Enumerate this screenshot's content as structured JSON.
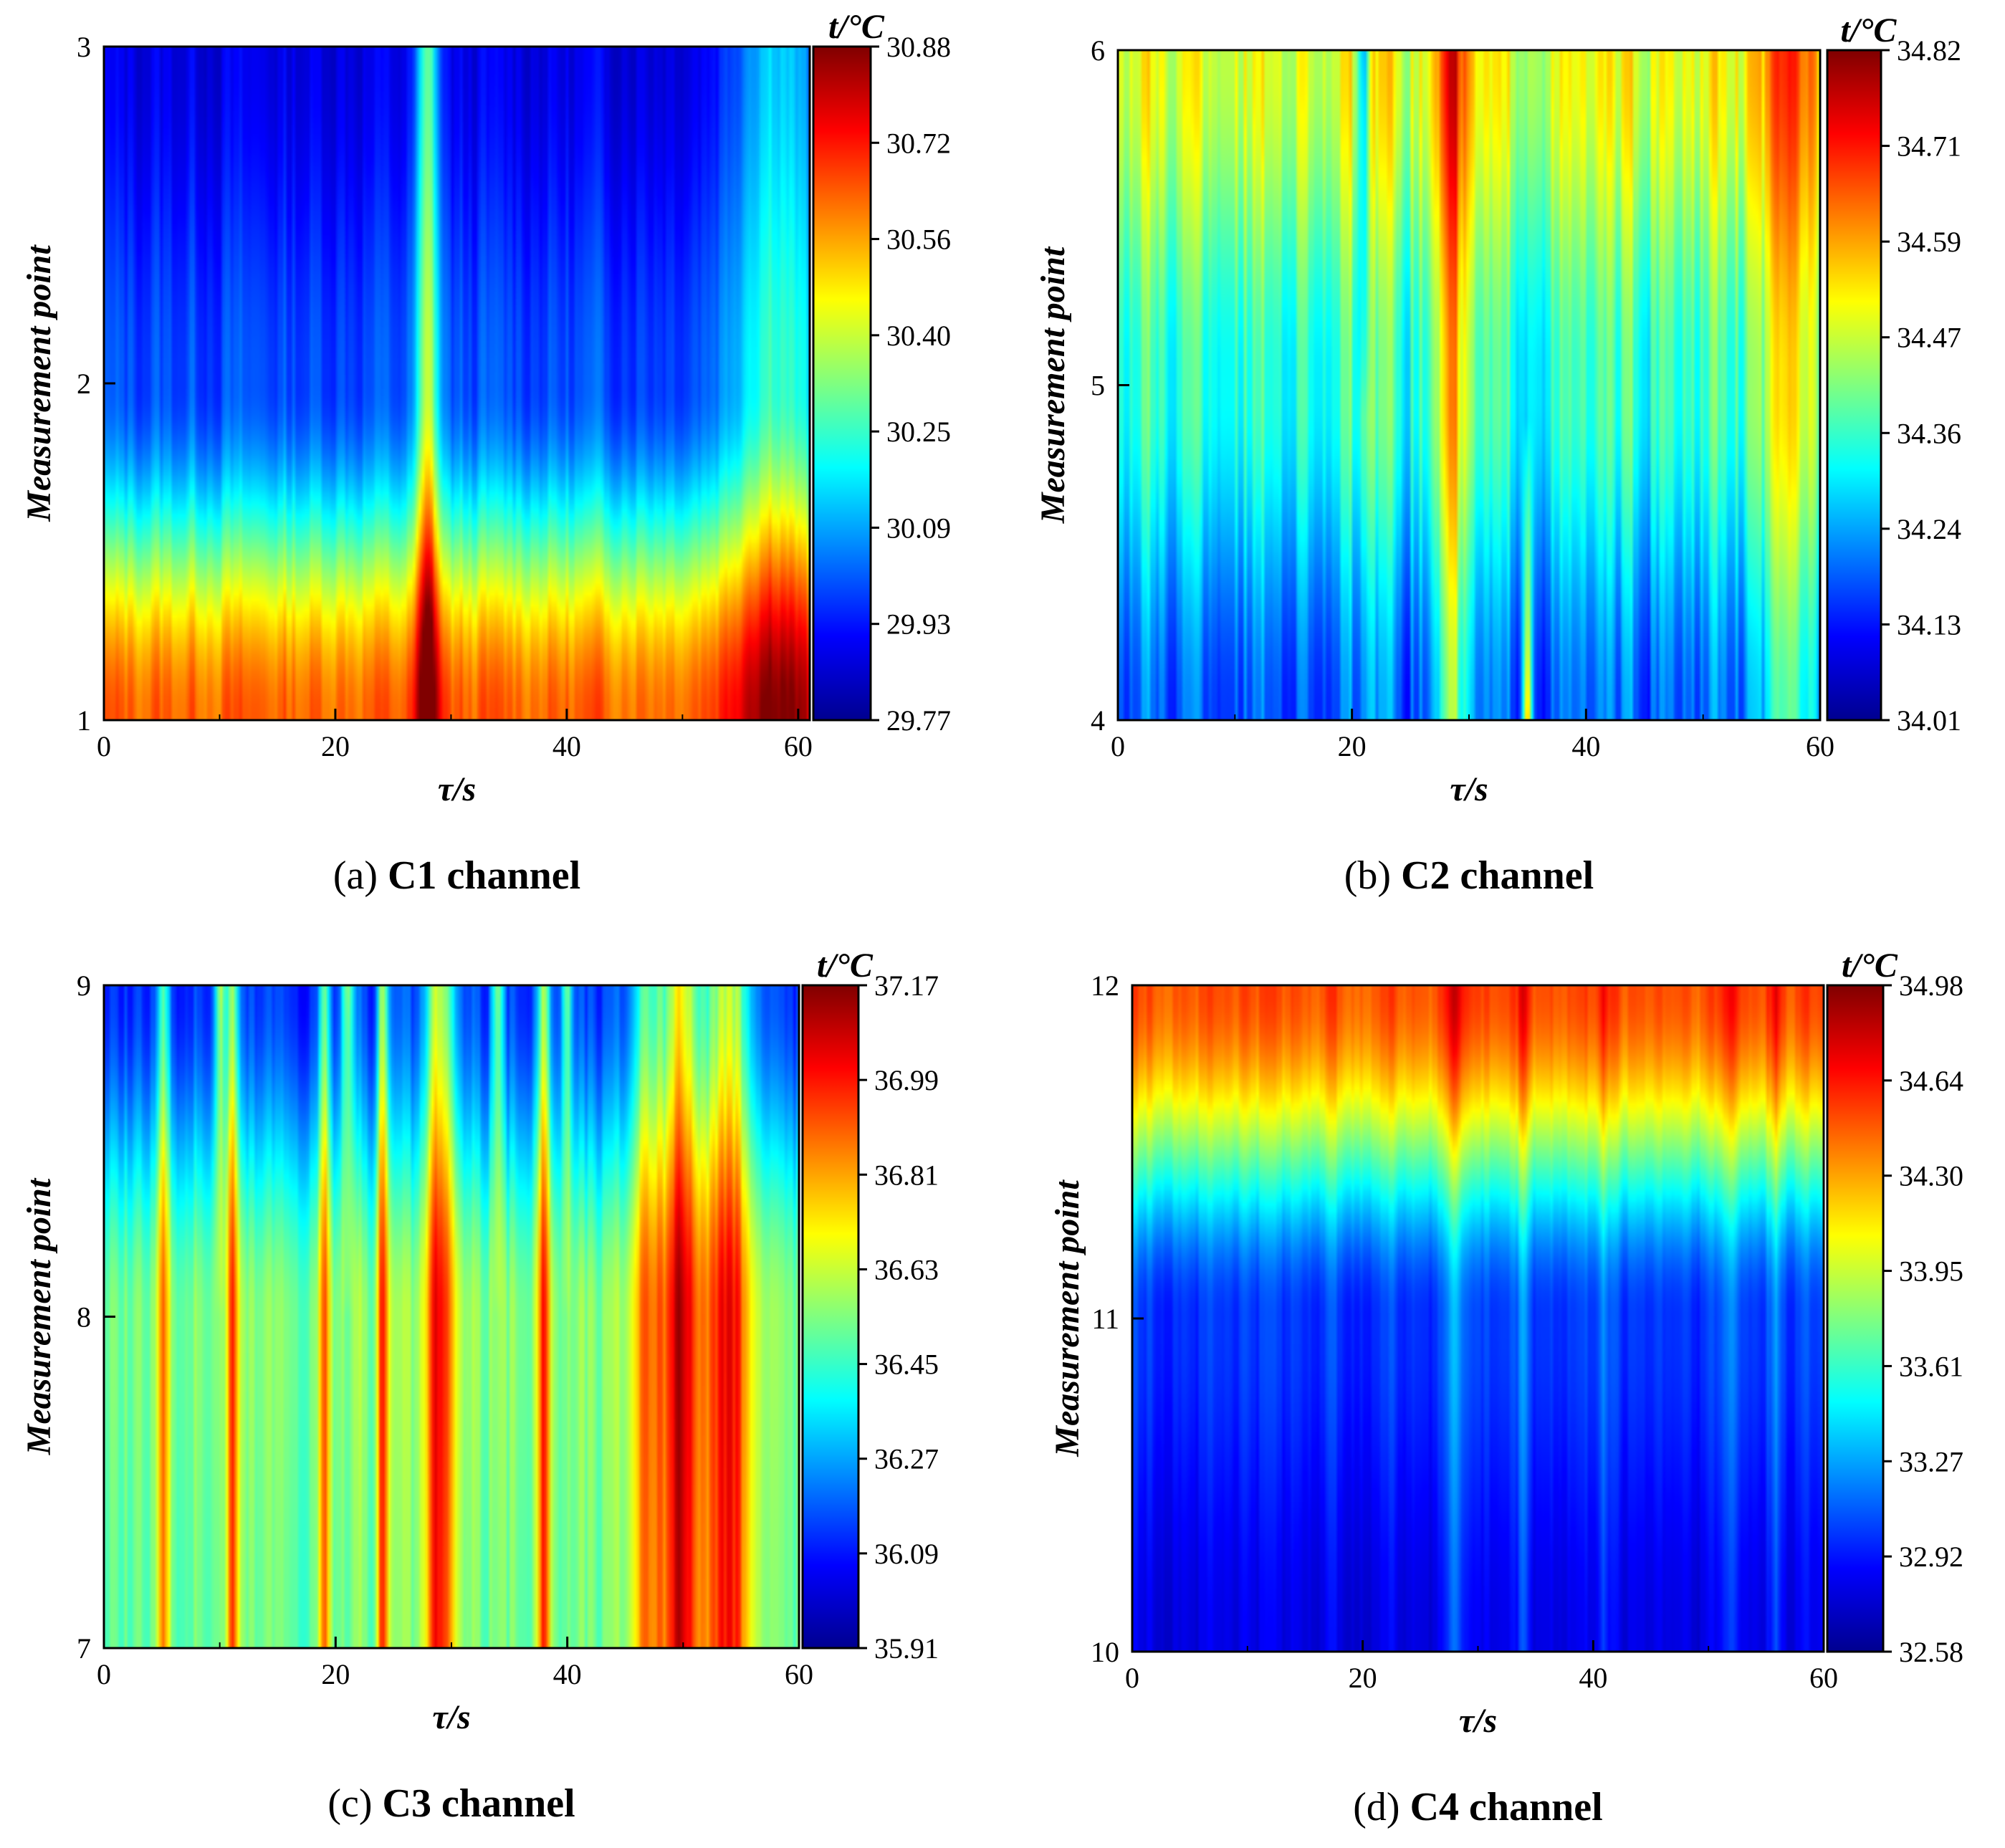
{
  "figure": {
    "colormap": [
      "#00008f",
      "#0000ff",
      "#00ffff",
      "#ffff00",
      "#ff0000",
      "#800000"
    ]
  },
  "chart_data": [
    {
      "type": "heatmap",
      "id": "a",
      "caption_prefix": "(a)",
      "caption_bold": "C1 channel",
      "xlabel": "τ/s",
      "ylabel": "Measurement point",
      "colorbar_label": "t/°C",
      "x_range": [
        0,
        61
      ],
      "x_ticks": [
        0,
        20,
        40,
        60
      ],
      "y_range": [
        1,
        3
      ],
      "y_ticks": [
        1,
        2,
        3
      ],
      "color_range": [
        29.77,
        30.88
      ],
      "colorbar_ticks": [
        "30.88",
        "30.72",
        "30.56",
        "30.40",
        "30.25",
        "30.09",
        "29.93",
        "29.77"
      ],
      "profile": [
        0.78,
        0.2,
        0.1
      ],
      "hot_columns": [
        {
          "x": 28,
          "strength": 0.35,
          "width": 1.0
        },
        {
          "x": 58,
          "strength": 0.25,
          "width": 4
        }
      ],
      "cold_columns": [],
      "noise": 0.06
    },
    {
      "type": "heatmap",
      "id": "b",
      "caption_prefix": "(b)",
      "caption_bold": "C2 channel",
      "xlabel": "τ/s",
      "ylabel": "Measurement point",
      "colorbar_label": "t/°C",
      "x_range": [
        0,
        60
      ],
      "x_ticks": [
        0,
        20,
        40,
        60
      ],
      "y_range": [
        4,
        6
      ],
      "y_ticks": [
        4,
        5,
        6
      ],
      "color_range": [
        34.01,
        34.82
      ],
      "colorbar_ticks": [
        "34.82",
        "34.71",
        "34.59",
        "34.47",
        "34.36",
        "34.24",
        "34.13",
        "34.01"
      ],
      "profile": [
        0.22,
        0.42,
        0.6
      ],
      "hot_columns": [
        {
          "x": 28.5,
          "strength": 0.3,
          "width": 1.3
        },
        {
          "x": 35,
          "strength": 0.55,
          "width": 0.4,
          "bottom_only": true
        },
        {
          "x": 58,
          "strength": 0.2,
          "width": 3
        }
      ],
      "cold_columns": [
        {
          "x": 21,
          "strength": 0.35,
          "width": 0.5,
          "top_only": true
        }
      ],
      "noise": 0.12
    },
    {
      "type": "heatmap",
      "id": "c",
      "caption_prefix": "(c)",
      "caption_bold": "C3 channel",
      "xlabel": "τ/s",
      "ylabel": "Measurement point",
      "colorbar_label": "t/°C",
      "x_range": [
        0,
        60
      ],
      "x_ticks": [
        0,
        20,
        40,
        60
      ],
      "y_range": [
        7,
        9
      ],
      "y_ticks": [
        7,
        8,
        9
      ],
      "color_range": [
        35.91,
        37.17
      ],
      "colorbar_ticks": [
        "37.17",
        "36.99",
        "36.81",
        "36.63",
        "36.45",
        "36.27",
        "36.09",
        "35.91"
      ],
      "profile": [
        0.48,
        0.5,
        0.18
      ],
      "hot_columns": [
        {
          "x": 5,
          "strength": 0.3,
          "width": 0.5
        },
        {
          "x": 11,
          "strength": 0.35,
          "width": 0.5
        },
        {
          "x": 19,
          "strength": 0.28,
          "width": 0.5
        },
        {
          "x": 24,
          "strength": 0.33,
          "width": 0.5
        },
        {
          "x": 29,
          "strength": 0.38,
          "width": 1.2
        },
        {
          "x": 38,
          "strength": 0.35,
          "width": 0.6
        },
        {
          "x": 47,
          "strength": 0.3,
          "width": 1.5
        },
        {
          "x": 50,
          "strength": 0.45,
          "width": 1.5
        },
        {
          "x": 54,
          "strength": 0.4,
          "width": 2.0
        },
        {
          "x": 10,
          "strength": 0.35,
          "width": 0.5,
          "top_only": true
        },
        {
          "x": 21,
          "strength": 0.35,
          "width": 0.5,
          "top_only": true
        },
        {
          "x": 34,
          "strength": 0.3,
          "width": 0.5,
          "top_only": true
        },
        {
          "x": 40,
          "strength": 0.3,
          "width": 0.5,
          "top_only": true
        }
      ],
      "cold_columns": [],
      "noise": 0.08
    },
    {
      "type": "heatmap",
      "id": "d",
      "caption_prefix": "(d)",
      "caption_bold": "C4 channel",
      "xlabel": "τ/s",
      "ylabel": "Measurement point",
      "colorbar_label": "t/°C",
      "x_range": [
        0,
        60
      ],
      "x_ticks": [
        0,
        20,
        40,
        60
      ],
      "y_range": [
        10,
        12
      ],
      "y_ticks": [
        10,
        11,
        12
      ],
      "color_range": [
        32.58,
        34.98
      ],
      "colorbar_ticks": [
        "34.98",
        "34.64",
        "34.30",
        "33.95",
        "33.61",
        "33.27",
        "32.92",
        "32.58"
      ],
      "profile": [
        0.1,
        0.18,
        0.8
      ],
      "hot_columns": [
        {
          "x": 28,
          "strength": 0.15,
          "width": 0.8
        },
        {
          "x": 34,
          "strength": 0.1,
          "width": 0.6
        },
        {
          "x": 41,
          "strength": 0.1,
          "width": 0.6
        },
        {
          "x": 52,
          "strength": 0.1,
          "width": 0.6
        },
        {
          "x": 56,
          "strength": 0.1,
          "width": 0.6
        }
      ],
      "cold_columns": [],
      "noise": 0.05
    }
  ]
}
